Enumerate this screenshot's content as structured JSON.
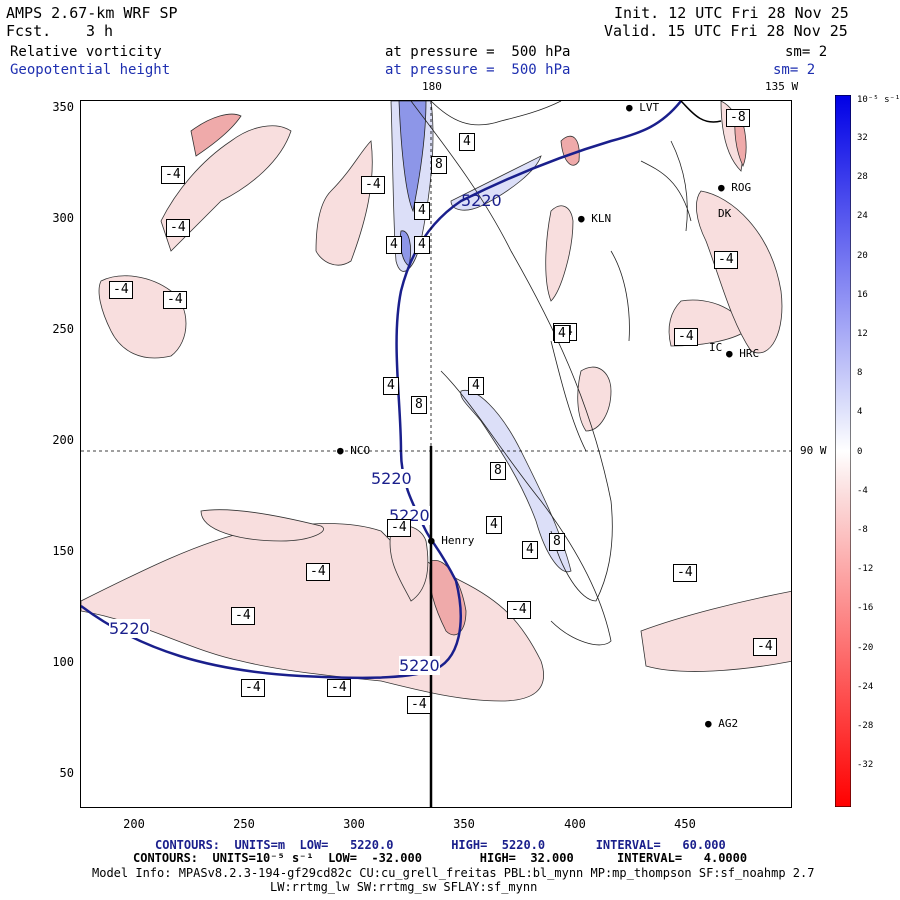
{
  "header": {
    "model": "AMPS 2.67-km WRF SP",
    "fcst_label": "Fcst.",
    "fcst_value": "3 h",
    "init": "Init. 12 UTC Fri 28 Nov 25",
    "valid": "Valid. 15 UTC Fri 28 Nov 25",
    "field1": "Relative vorticity",
    "field1_level": "at pressure =  500 hPa",
    "field1_sm": "sm= 2",
    "field2": "Geopotential height",
    "field2_level": "at pressure =  500 hPa",
    "field2_sm": "sm= 2"
  },
  "map": {
    "lon_label_top_left": "180",
    "lon_label_top_right": "135 W",
    "lon_label_right": "90 W",
    "stations": [
      {
        "name": "LVT"
      },
      {
        "name": "KLN"
      },
      {
        "name": "HRC"
      },
      {
        "name": "NCO"
      },
      {
        "name": "Henry"
      },
      {
        "name": "AG2"
      },
      {
        "name": "ROG"
      },
      {
        "name": "DK"
      },
      {
        "name": "IC"
      }
    ],
    "contour_labels_height": [
      "5220",
      "5220",
      "5220",
      "5220",
      "5220"
    ],
    "vort_labels": [
      "-4",
      "-4",
      "-4",
      "-4",
      "-4",
      "-4",
      "-4",
      "-4",
      "-4",
      "-4",
      "-4",
      "-4",
      "-4",
      "-4",
      "-4",
      "-4",
      "-4",
      "-8",
      "4",
      "4",
      "4",
      "4",
      "4",
      "4",
      "4",
      "4",
      "4",
      "8",
      "8",
      "8",
      "8"
    ]
  },
  "axes": {
    "y_ticks": [
      "350",
      "300",
      "250",
      "200",
      "150",
      "100",
      "50"
    ],
    "x_ticks": [
      "200",
      "250",
      "300",
      "350",
      "400",
      "450"
    ]
  },
  "colorbar": {
    "unit": "10⁻⁵ s⁻¹",
    "labels": [
      "32",
      "28",
      "24",
      "20",
      "16",
      "12",
      "8",
      "4",
      "0",
      "-4",
      "-8",
      "-12",
      "-16",
      "-20",
      "-24",
      "-28",
      "-32"
    ]
  },
  "footer": {
    "contours1": "CONTOURS:  UNITS=m  LOW=   5220.0        HIGH=  5220.0       INTERVAL=   60.000",
    "contours2": "CONTOURS:  UNITS=10⁻⁵ s⁻¹  LOW=  -32.000        HIGH=  32.000      INTERVAL=   4.0000",
    "model_info": "Model Info: MPASv8.2.3-194-gf29cd82c CU:cu_grell_freitas PBL:bl_mynn MP:mp_thompson SF:sf_noahmp 2.7",
    "model_info2": "LW:rrtmg_lw SW:rrtmg_sw SFLAY:sf_mynn"
  },
  "colors": {
    "height_contour": "#1a1f8c",
    "neg_fill": "#f8dede",
    "neg_fill2": "#efaaaa",
    "pos_fill": "#dcdff8",
    "pos_fill2": "#8d96e8"
  }
}
